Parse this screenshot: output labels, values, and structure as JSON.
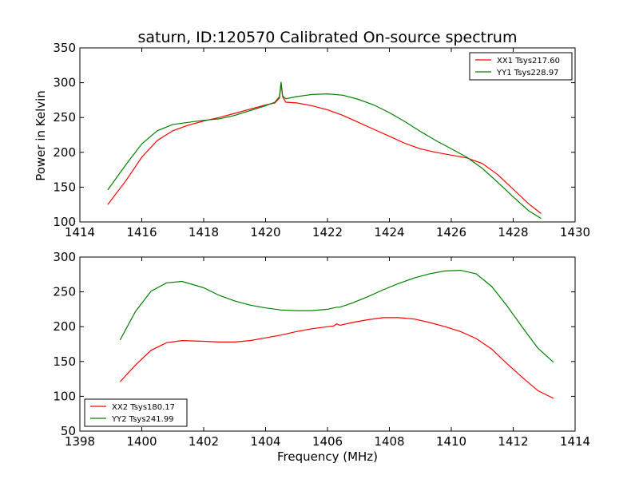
{
  "chart_data": [
    {
      "type": "line",
      "title": "saturn, ID:120570 Calibrated On-source spectrum",
      "xlabel": "",
      "ylabel": "Power in Kelvin",
      "xlim": [
        1414,
        1430
      ],
      "ylim": [
        100,
        350
      ],
      "xticks": [
        1414,
        1416,
        1418,
        1420,
        1422,
        1424,
        1426,
        1428,
        1430
      ],
      "yticks": [
        100,
        150,
        200,
        250,
        300,
        350
      ],
      "legend_position": "top-right",
      "series": [
        {
          "name": "XX1 Tsys217.60",
          "color": "#ff0000",
          "x": [
            1414.9,
            1415.5,
            1416,
            1416.5,
            1417,
            1417.5,
            1418,
            1418.5,
            1419,
            1419.5,
            1420,
            1420.3,
            1420.45,
            1420.5,
            1420.55,
            1420.65,
            1421,
            1421.5,
            1422,
            1422.5,
            1423,
            1423.5,
            1424,
            1424.5,
            1425,
            1425.5,
            1426,
            1426.5,
            1427,
            1427.5,
            1428,
            1428.5,
            1428.9
          ],
          "values": [
            125,
            160,
            193,
            217,
            231,
            239,
            245,
            250,
            256,
            262,
            268,
            271,
            278,
            299,
            280,
            272,
            271,
            267,
            261,
            253,
            243,
            233,
            223,
            213,
            205,
            200,
            196,
            192,
            184,
            168,
            147,
            126,
            112
          ]
        },
        {
          "name": "YY1 Tsys228.97",
          "color": "#008000",
          "x": [
            1414.9,
            1415.5,
            1416,
            1416.5,
            1417,
            1417.5,
            1418,
            1418.5,
            1419,
            1419.5,
            1420,
            1420.3,
            1420.45,
            1420.5,
            1420.55,
            1420.65,
            1421,
            1421.5,
            1422,
            1422.5,
            1423,
            1423.5,
            1424,
            1424.5,
            1425,
            1425.5,
            1426,
            1426.5,
            1427,
            1427.5,
            1428,
            1428.5,
            1428.9
          ],
          "values": [
            146,
            183,
            212,
            231,
            240,
            243,
            246,
            248,
            253,
            260,
            267,
            272,
            280,
            301,
            281,
            277,
            280,
            283,
            284,
            282,
            276,
            268,
            257,
            244,
            230,
            217,
            205,
            193,
            177,
            157,
            136,
            116,
            105
          ]
        }
      ]
    },
    {
      "type": "line",
      "title": "",
      "xlabel": "Frequency (MHz)",
      "ylabel": "",
      "xlim": [
        1398,
        1414
      ],
      "ylim": [
        50,
        300
      ],
      "xticks": [
        1398,
        1400,
        1402,
        1404,
        1406,
        1408,
        1410,
        1412,
        1414
      ],
      "yticks": [
        50,
        100,
        150,
        200,
        250,
        300
      ],
      "legend_position": "bottom-left",
      "series": [
        {
          "name": "XX2 Tsys180.17",
          "color": "#ff0000",
          "x": [
            1399.3,
            1399.8,
            1400.3,
            1400.8,
            1401.3,
            1402,
            1402.5,
            1403,
            1403.5,
            1404,
            1404.5,
            1405,
            1405.5,
            1406,
            1406.2,
            1406.3,
            1406.4,
            1406.8,
            1407.3,
            1407.8,
            1408.3,
            1408.8,
            1409.3,
            1409.8,
            1410.3,
            1410.8,
            1411.3,
            1411.8,
            1412.3,
            1412.8,
            1413.3
          ],
          "values": [
            121,
            145,
            166,
            177,
            180,
            179,
            178,
            178,
            180,
            184,
            188,
            193,
            197,
            200,
            201,
            204,
            202,
            206,
            210,
            213,
            213,
            211,
            206,
            200,
            193,
            183,
            168,
            147,
            127,
            108,
            97
          ]
        },
        {
          "name": "YY2 Tsys241.99",
          "color": "#008000",
          "x": [
            1399.3,
            1399.8,
            1400.3,
            1400.8,
            1401.3,
            1402,
            1402.5,
            1403,
            1403.5,
            1404,
            1404.5,
            1405,
            1405.5,
            1406,
            1406.2,
            1406.3,
            1406.4,
            1406.8,
            1407.3,
            1407.8,
            1408.3,
            1408.8,
            1409.3,
            1409.8,
            1410.3,
            1410.8,
            1411.3,
            1411.8,
            1412.3,
            1412.8,
            1413.3
          ],
          "values": [
            181,
            222,
            251,
            263,
            265,
            256,
            245,
            237,
            231,
            227,
            224,
            223,
            223,
            225,
            227,
            228,
            228,
            234,
            243,
            253,
            262,
            270,
            276,
            280,
            281,
            276,
            258,
            230,
            199,
            169,
            149
          ]
        }
      ]
    }
  ]
}
